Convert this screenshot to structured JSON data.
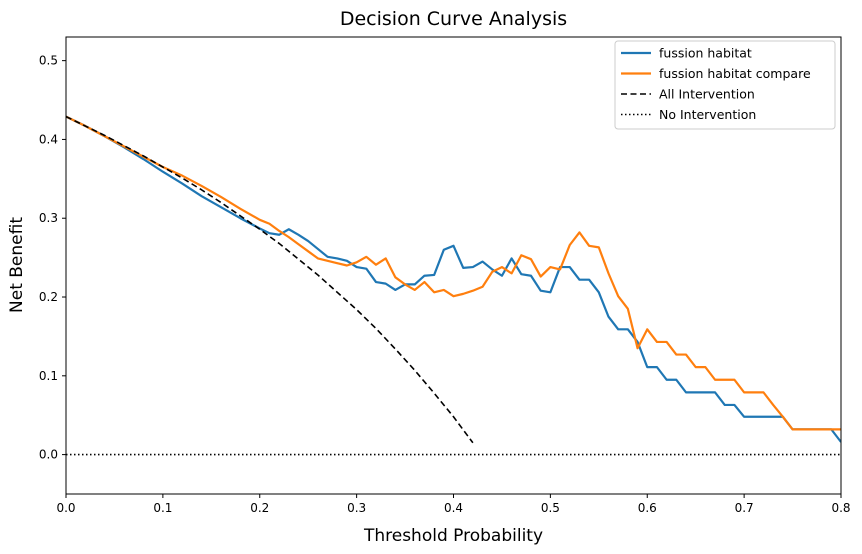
{
  "chart_data": {
    "type": "line",
    "title": "Decision Curve Analysis",
    "xlabel": "Threshold Probability",
    "ylabel": "Net Benefit",
    "xlim": [
      0.0,
      0.8
    ],
    "ylim": [
      -0.05,
      0.53
    ],
    "xticks": [
      0.0,
      0.1,
      0.2,
      0.3,
      0.4,
      0.5,
      0.6,
      0.7,
      0.8
    ],
    "xtick_labels": [
      "0.0",
      "0.1",
      "0.2",
      "0.3",
      "0.4",
      "0.5",
      "0.6",
      "0.7",
      "0.8"
    ],
    "yticks": [
      0.0,
      0.1,
      0.2,
      0.3,
      0.4,
      0.5
    ],
    "ytick_labels": [
      "0.0",
      "0.1",
      "0.2",
      "0.3",
      "0.4",
      "0.5"
    ],
    "grid": false,
    "legend_position": "top-right",
    "series": [
      {
        "name": "fussion habitat",
        "color": "#1f77b4",
        "style": "solid",
        "x": [
          0.0,
          0.02,
          0.04,
          0.06,
          0.08,
          0.1,
          0.12,
          0.14,
          0.16,
          0.18,
          0.2,
          0.21,
          0.22,
          0.23,
          0.24,
          0.25,
          0.26,
          0.27,
          0.28,
          0.29,
          0.3,
          0.31,
          0.32,
          0.33,
          0.34,
          0.35,
          0.36,
          0.37,
          0.38,
          0.39,
          0.4,
          0.41,
          0.42,
          0.43,
          0.44,
          0.45,
          0.46,
          0.47,
          0.48,
          0.49,
          0.5,
          0.51,
          0.52,
          0.53,
          0.54,
          0.55,
          0.56,
          0.57,
          0.58,
          0.59,
          0.6,
          0.61,
          0.62,
          0.63,
          0.64,
          0.65,
          0.66,
          0.67,
          0.68,
          0.69,
          0.7,
          0.71,
          0.72,
          0.73,
          0.74,
          0.75,
          0.76,
          0.77,
          0.78,
          0.79,
          0.8
        ],
        "y": [
          0.429,
          0.417,
          0.404,
          0.39,
          0.375,
          0.359,
          0.344,
          0.328,
          0.314,
          0.3,
          0.287,
          0.281,
          0.279,
          0.286,
          0.279,
          0.271,
          0.261,
          0.251,
          0.249,
          0.246,
          0.238,
          0.236,
          0.219,
          0.217,
          0.209,
          0.216,
          0.216,
          0.227,
          0.228,
          0.26,
          0.265,
          0.237,
          0.238,
          0.245,
          0.235,
          0.227,
          0.249,
          0.229,
          0.227,
          0.208,
          0.206,
          0.238,
          0.238,
          0.222,
          0.222,
          0.206,
          0.175,
          0.159,
          0.159,
          0.143,
          0.111,
          0.111,
          0.095,
          0.095,
          0.079,
          0.079,
          0.079,
          0.079,
          0.063,
          0.063,
          0.048,
          0.048,
          0.048,
          0.048,
          0.048,
          0.032,
          0.032,
          0.032,
          0.032,
          0.032,
          0.016
        ]
      },
      {
        "name": "fussion habitat compare",
        "color": "#ff7f0e",
        "style": "solid",
        "x": [
          0.0,
          0.02,
          0.04,
          0.06,
          0.08,
          0.1,
          0.12,
          0.14,
          0.16,
          0.18,
          0.2,
          0.21,
          0.22,
          0.23,
          0.24,
          0.25,
          0.26,
          0.27,
          0.28,
          0.29,
          0.3,
          0.31,
          0.32,
          0.33,
          0.34,
          0.35,
          0.36,
          0.37,
          0.38,
          0.39,
          0.4,
          0.41,
          0.42,
          0.43,
          0.44,
          0.45,
          0.46,
          0.47,
          0.48,
          0.49,
          0.5,
          0.51,
          0.52,
          0.53,
          0.54,
          0.55,
          0.56,
          0.57,
          0.58,
          0.59,
          0.6,
          0.61,
          0.62,
          0.63,
          0.64,
          0.65,
          0.66,
          0.67,
          0.68,
          0.69,
          0.7,
          0.71,
          0.72,
          0.73,
          0.74,
          0.75,
          0.76,
          0.77,
          0.78,
          0.79,
          0.8
        ],
        "y": [
          0.429,
          0.417,
          0.404,
          0.391,
          0.378,
          0.365,
          0.354,
          0.341,
          0.327,
          0.312,
          0.298,
          0.293,
          0.284,
          0.276,
          0.267,
          0.258,
          0.249,
          0.246,
          0.243,
          0.24,
          0.244,
          0.251,
          0.241,
          0.249,
          0.225,
          0.216,
          0.209,
          0.219,
          0.206,
          0.209,
          0.201,
          0.204,
          0.208,
          0.213,
          0.232,
          0.238,
          0.23,
          0.253,
          0.248,
          0.226,
          0.238,
          0.235,
          0.266,
          0.282,
          0.265,
          0.263,
          0.23,
          0.201,
          0.185,
          0.135,
          0.159,
          0.143,
          0.143,
          0.127,
          0.127,
          0.111,
          0.111,
          0.095,
          0.095,
          0.095,
          0.079,
          0.079,
          0.079,
          0.063,
          0.048,
          0.032,
          0.032,
          0.032,
          0.032,
          0.032,
          0.032
        ]
      },
      {
        "name": "All Intervention",
        "color": "#000000",
        "style": "dashed",
        "x": [
          0.0,
          0.02,
          0.04,
          0.06,
          0.08,
          0.1,
          0.12,
          0.14,
          0.16,
          0.18,
          0.2,
          0.22,
          0.24,
          0.26,
          0.28,
          0.3,
          0.32,
          0.34,
          0.36,
          0.38,
          0.4,
          0.42
        ],
        "y": [
          0.429,
          0.417,
          0.405,
          0.392,
          0.379,
          0.365,
          0.351,
          0.336,
          0.32,
          0.303,
          0.286,
          0.268,
          0.248,
          0.228,
          0.206,
          0.184,
          0.16,
          0.134,
          0.107,
          0.078,
          0.048,
          0.015
        ]
      },
      {
        "name": "No Intervention",
        "color": "#000000",
        "style": "dotted",
        "x": [
          0.0,
          0.8
        ],
        "y": [
          0.0,
          0.0
        ]
      }
    ]
  }
}
